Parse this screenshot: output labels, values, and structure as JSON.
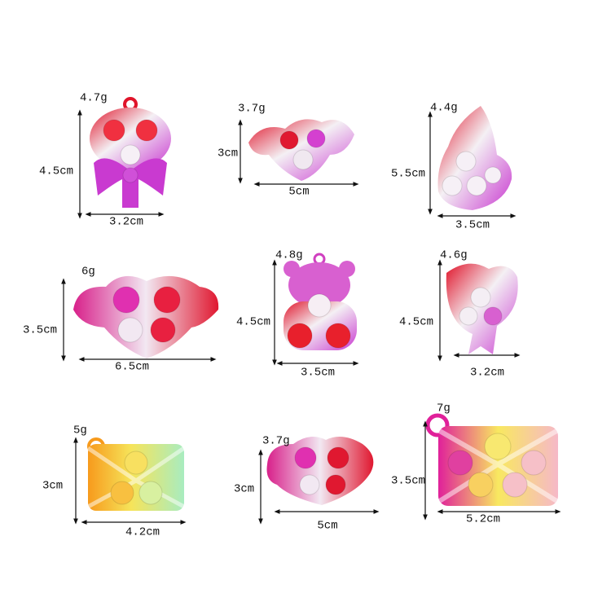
{
  "items": [
    {
      "weight": "4.7g",
      "height": "4.5cm",
      "width": "3.2cm"
    },
    {
      "weight": "3.7g",
      "height": "3cm",
      "width": "5cm"
    },
    {
      "weight": "4.4g",
      "height": "5.5cm",
      "width": "3.5cm"
    },
    {
      "weight": "6g",
      "height": "3.5cm",
      "width": "6.5cm"
    },
    {
      "weight": "4.8g",
      "height": "4.5cm",
      "width": "3.5cm"
    },
    {
      "weight": "4.6g",
      "height": "4.5cm",
      "width": "3.2cm"
    },
    {
      "weight": "5g",
      "height": "3cm",
      "width": "4.2cm"
    },
    {
      "weight": "3.7g",
      "height": "3cm",
      "width": "5cm"
    },
    {
      "weight": "7g",
      "height": "3.5cm",
      "width": "5.2cm"
    }
  ]
}
